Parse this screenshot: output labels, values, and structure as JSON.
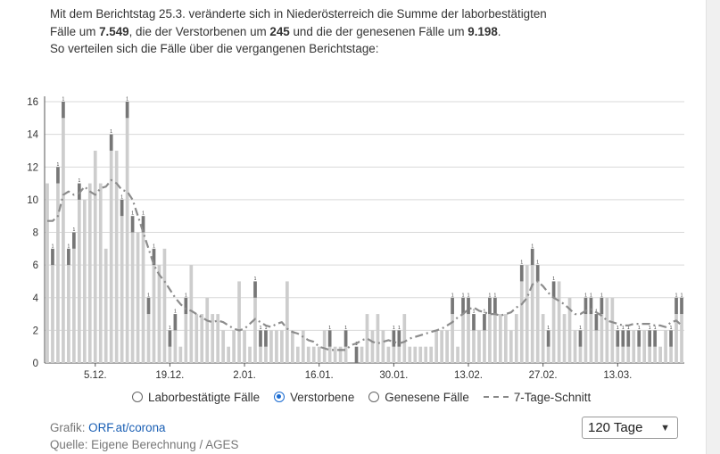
{
  "intro": {
    "line1": "Mit dem Berichtstag 25.3. veränderte sich in Niederösterreich die Summe der laborbestätigten",
    "line2_a": "Fälle um ",
    "line2_cases": "7.549",
    "line2_b": ", die der Verstorbenen um ",
    "line2_deaths": "245",
    "line2_c": " und die der genesenen Fälle um ",
    "line2_recovered": "9.198",
    "line2_d": ".",
    "line3": "So verteilen sich die Fälle über die vergangenen Berichtstage:"
  },
  "legend": {
    "confirmed": "Laborbestätigte Fälle",
    "deaths": "Verstorbene",
    "recovered": "Genesene Fälle",
    "avg": "7-Tage-Schnitt",
    "selected": "deaths"
  },
  "footer": {
    "grafik_label": "Grafik: ",
    "grafik_link": "ORF.at/corona",
    "source": "Quelle: Eigene Berechnung / AGES"
  },
  "range_select": {
    "value": "120 Tage"
  },
  "colors": {
    "bar_light": "#cdcdcd",
    "bar_dark": "#777777",
    "avg_line": "#8c8c8c",
    "grid": "#d9d9d9",
    "radio_selected": "#1a6bd1"
  },
  "chart_data": {
    "type": "bar",
    "ylim": [
      0,
      16
    ],
    "yticks": [
      0,
      2,
      4,
      6,
      8,
      10,
      12,
      14,
      16
    ],
    "grid": true,
    "xtick_labels": [
      {
        "label": "5.12.",
        "index": 9
      },
      {
        "label": "19.12.",
        "index": 23
      },
      {
        "label": "2.01.",
        "index": 37
      },
      {
        "label": "16.01.",
        "index": 51
      },
      {
        "label": "30.01.",
        "index": 65
      },
      {
        "label": "13.02.",
        "index": 79
      },
      {
        "label": "27.02.",
        "index": 93
      },
      {
        "label": "13.03.",
        "index": 107
      }
    ],
    "series": [
      {
        "name": "Verstorbene",
        "values": [
          0,
          1,
          1,
          1,
          1,
          1,
          1,
          0,
          0,
          0,
          0,
          0,
          1,
          0,
          1,
          1,
          1,
          0,
          1,
          1,
          1,
          0,
          0,
          1,
          1,
          0,
          1,
          0,
          0,
          0,
          0,
          0,
          0,
          0,
          0,
          0,
          0,
          0,
          0,
          1,
          1,
          1,
          0,
          0,
          0,
          0,
          0,
          0,
          0,
          0,
          0,
          0,
          0,
          1,
          0,
          0,
          1,
          0,
          1,
          0,
          0,
          0,
          0,
          0,
          0,
          1,
          1,
          0,
          0,
          0,
          0,
          0,
          0,
          0,
          0,
          0,
          1,
          0,
          1,
          1,
          1,
          0,
          1,
          1,
          1,
          0,
          0,
          0,
          0,
          1,
          0,
          1,
          1,
          0,
          1,
          1,
          0,
          0,
          0,
          0,
          1,
          1,
          1,
          1,
          1,
          0,
          0,
          1,
          1,
          1,
          0,
          1,
          0,
          1,
          1,
          0,
          0,
          1,
          1,
          1
        ]
      },
      {
        "name": "Laborbestätigte Fälle",
        "values": [
          11,
          6,
          11,
          15,
          6,
          7,
          10,
          10,
          11,
          13,
          11,
          7,
          13,
          13,
          9,
          15,
          8,
          8,
          8,
          3,
          6,
          6,
          7,
          1,
          2,
          1,
          3,
          6,
          3,
          3,
          4,
          3,
          3,
          2,
          1,
          2,
          5,
          2,
          1,
          4,
          1,
          1,
          2,
          2,
          2,
          5,
          2,
          1,
          2,
          1,
          1,
          1,
          2,
          1,
          1,
          1,
          1,
          0,
          0,
          1,
          3,
          2,
          3,
          2,
          1,
          1,
          1,
          3,
          1,
          1,
          1,
          1,
          1,
          2,
          2,
          2,
          3,
          1,
          3,
          3,
          2,
          2,
          2,
          3,
          3,
          3,
          3,
          2,
          3,
          5,
          6,
          6,
          5,
          3,
          1,
          4,
          5,
          3,
          4,
          2,
          1,
          3,
          3,
          2,
          3,
          4,
          4,
          1,
          1,
          1,
          2,
          1,
          2,
          1,
          1,
          1,
          2,
          1,
          3,
          3
        ]
      }
    ],
    "avg_7day": [
      8.7,
      8.7,
      9.0,
      10.3,
      10.5,
      10.3,
      10.4,
      10.8,
      10.5,
      10.3,
      10.7,
      10.8,
      11.2,
      11.0,
      10.6,
      10.5,
      10.0,
      9.0,
      8.0,
      7.0,
      6.0,
      5.4,
      5.0,
      4.5,
      4.0,
      3.6,
      3.3,
      3.2,
      3.0,
      2.8,
      2.6,
      2.5,
      2.6,
      2.5,
      2.3,
      2.1,
      2.0,
      2.1,
      2.4,
      2.7,
      2.5,
      2.3,
      2.2,
      2.4,
      2.5,
      2.1,
      1.9,
      1.8,
      1.6,
      1.4,
      1.3,
      1.0,
      0.9,
      0.8,
      0.8,
      0.8,
      0.8,
      1.1,
      1.2,
      1.4,
      1.5,
      1.3,
      1.2,
      1.3,
      1.4,
      1.3,
      1.2,
      1.3,
      1.5,
      1.6,
      1.7,
      1.8,
      1.9,
      2.0,
      2.1,
      2.3,
      2.5,
      2.8,
      3.0,
      3.3,
      3.4,
      3.2,
      3.1,
      3.0,
      3.0,
      2.9,
      3.0,
      3.1,
      3.4,
      3.6,
      4.0,
      4.8,
      5.0,
      4.7,
      4.3,
      4.0,
      3.8,
      3.6,
      3.3,
      3.0,
      3.0,
      3.2,
      3.3,
      3.1,
      2.9,
      2.6,
      2.5,
      2.4,
      2.3,
      2.3,
      2.4,
      2.4,
      2.4,
      2.4,
      2.3,
      2.3,
      2.2,
      2.5,
      2.6,
      2.3
    ]
  }
}
